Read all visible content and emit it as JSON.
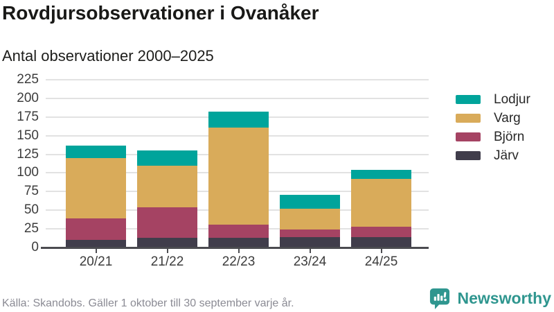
{
  "header": {
    "title": "Rovdjursobservationer i Ovanåker",
    "subtitle": "Antal observationer 2000–2025"
  },
  "chart_data": {
    "type": "bar",
    "stacked": true,
    "title": "Rovdjursobservationer i Ovanåker",
    "subtitle": "Antal observationer 2000–2025",
    "categories": [
      "20/21",
      "21/22",
      "22/23",
      "23/24",
      "24/25"
    ],
    "series": [
      {
        "name": "Lodjur",
        "color": "#00a49b",
        "values": [
          17,
          20,
          21,
          19,
          12
        ]
      },
      {
        "name": "Varg",
        "color": "#d9ab5a",
        "values": [
          81,
          56,
          130,
          28,
          64
        ]
      },
      {
        "name": "Björn",
        "color": "#a54363",
        "values": [
          29,
          41,
          18,
          10,
          14
        ]
      },
      {
        "name": "Järv",
        "color": "#403d4b",
        "values": [
          10,
          13,
          13,
          14,
          14
        ]
      }
    ],
    "stack_order": "bottom-to-top is reverse of series list (Järv bottom, Lodjur top)",
    "totals": [
      137,
      130,
      182,
      71,
      104
    ],
    "xlabel": "",
    "ylabel": "",
    "ylim": [
      0,
      225
    ],
    "yticks": [
      0,
      25,
      50,
      75,
      100,
      125,
      150,
      175,
      200,
      225
    ],
    "grid": "horizontal",
    "legend_position": "right"
  },
  "footer": {
    "source": "Källa: Skandobs. Gäller 1 oktober till 30 september varje år."
  },
  "branding": {
    "name": "Newsworthy",
    "icon": "newsworthy-chart-bubble-icon",
    "color": "#2f968f"
  }
}
